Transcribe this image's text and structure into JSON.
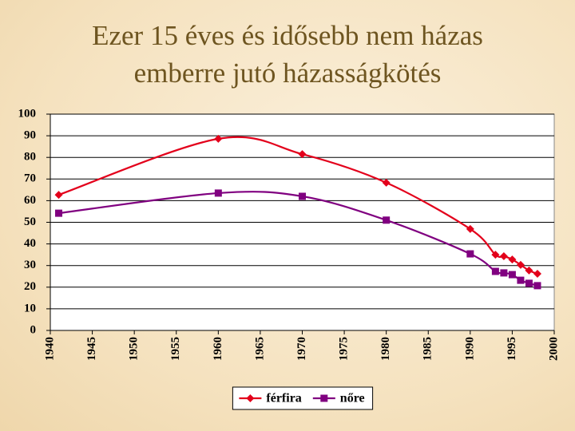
{
  "chart_data": {
    "type": "line",
    "title": [
      "Ezer 15 éves és idősebb nem házas",
      "emberre jutó házasságkötés"
    ],
    "x": [
      1941,
      1960,
      1970,
      1980,
      1990,
      1993,
      1994,
      1995,
      1996,
      1997,
      1998
    ],
    "series": [
      {
        "name": "férfira",
        "color": "#e3001b",
        "marker": "diamond",
        "values": [
          62.7,
          88.6,
          81.5,
          68.3,
          46.9,
          35,
          34.3,
          32.8,
          30.3,
          27.7,
          26.2
        ]
      },
      {
        "name": "nőre",
        "color": "#800080",
        "marker": "square",
        "values": [
          54.2,
          63.5,
          62,
          51,
          35.4,
          27.3,
          26.6,
          25.8,
          23.2,
          21.8,
          20.7
        ]
      }
    ],
    "xlim": [
      1940,
      2000
    ],
    "xticks": [
      1940,
      1945,
      1950,
      1955,
      1960,
      1965,
      1970,
      1975,
      1980,
      1985,
      1990,
      1995,
      2000
    ],
    "ylim": [
      0,
      100
    ],
    "yticks": [
      0,
      10,
      20,
      30,
      40,
      50,
      60,
      70,
      80,
      90,
      100
    ],
    "grid": true,
    "legend": "bottom"
  }
}
